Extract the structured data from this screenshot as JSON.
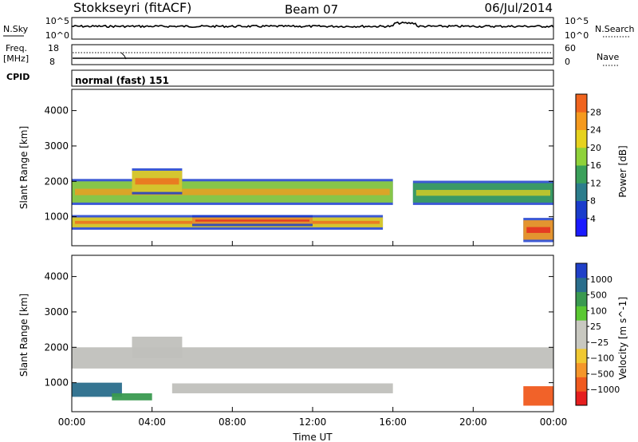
{
  "header": {
    "station": "Stokkseyri (fitACF)",
    "beam": "Beam 07",
    "date": "06/Jul/2014"
  },
  "sky_panel": {
    "left_label": "N.Sky",
    "right_label": "N.Search",
    "left_ticks": [
      "10^5",
      "10^0"
    ],
    "right_ticks": [
      "10^5",
      "10^0"
    ]
  },
  "freq_panel": {
    "left_label_1": "Freq.",
    "left_label_2": "[MHz]",
    "right_label": "Nave",
    "left_ticks": [
      "18",
      "8"
    ],
    "right_ticks": [
      "60",
      "0"
    ]
  },
  "cpid": {
    "label": "CPID",
    "value": "normal (fast) 151"
  },
  "colors": {
    "power_scale": [
      "#1a1aff",
      "#1a3ccc",
      "#2c7d8c",
      "#3aa05a",
      "#8fd23a",
      "#e6d21e",
      "#f59a1e",
      "#f0641e",
      "#e61e1e"
    ],
    "velocity_scale": [
      "#2040c8",
      "#2a6e8c",
      "#3a9a50",
      "#5ac832",
      "#c8c8c0",
      "#c8c8c0",
      "#f0c832",
      "#f5962a",
      "#f05a1e",
      "#e61e1e"
    ],
    "ground_scatter": "#c0c0bc"
  },
  "chart_data": [
    {
      "type": "heatmap",
      "title": "",
      "xlabel": "",
      "ylabel": "Slant Range [km]",
      "x_range": [
        "00:00",
        "24:00"
      ],
      "ylim": [
        180,
        4600
      ],
      "y_ticks": [
        "1000",
        "2000",
        "3000",
        "4000"
      ],
      "colorbar": {
        "label": "Power [dB]",
        "ticks": [
          "4",
          "8",
          "12",
          "16",
          "20",
          "24",
          "28"
        ],
        "range": [
          0,
          32
        ]
      },
      "bands": [
        {
          "start_h": 0.0,
          "end_h": 16.0,
          "range_low_km": 1400,
          "range_high_km": 2000,
          "level_db": 18
        },
        {
          "start_h": 3.0,
          "end_h": 5.5,
          "range_low_km": 1700,
          "range_high_km": 2300,
          "level_db": 20
        },
        {
          "start_h": 17.0,
          "end_h": 24.0,
          "range_low_km": 1400,
          "range_high_km": 1950,
          "level_db": 14
        },
        {
          "start_h": 0.0,
          "end_h": 15.5,
          "range_low_km": 700,
          "range_high_km": 980,
          "level_db": 22
        },
        {
          "start_h": 6.0,
          "end_h": 12.0,
          "range_low_km": 800,
          "range_high_km": 980,
          "level_db": 26
        },
        {
          "start_h": 22.5,
          "end_h": 24.0,
          "range_low_km": 350,
          "range_high_km": 900,
          "level_db": 24
        }
      ]
    },
    {
      "type": "heatmap",
      "title": "",
      "xlabel": "Time UT",
      "ylabel": "Slant Range [km]",
      "x_range": [
        "00:00",
        "24:00"
      ],
      "x_ticks": [
        "00:00",
        "04:00",
        "08:00",
        "12:00",
        "16:00",
        "20:00",
        "00:00"
      ],
      "ylim": [
        180,
        4600
      ],
      "y_ticks": [
        "1000",
        "2000",
        "3000",
        "4000"
      ],
      "colorbar": {
        "label": "Velocity [m s^-1]",
        "ticks": [
          "1000",
          "500",
          "100",
          "25",
          "−25",
          "−100",
          "−500",
          "−1000"
        ]
      },
      "bands": [
        {
          "start_h": 0.0,
          "end_h": 24.0,
          "range_low_km": 1400,
          "range_high_km": 2000,
          "velocity": 0
        },
        {
          "start_h": 3.0,
          "end_h": 5.5,
          "range_low_km": 1700,
          "range_high_km": 2300,
          "velocity": 0
        },
        {
          "start_h": 0.0,
          "end_h": 2.5,
          "range_low_km": 600,
          "range_high_km": 1000,
          "velocity": 200
        },
        {
          "start_h": 2.0,
          "end_h": 4.0,
          "range_low_km": 500,
          "range_high_km": 700,
          "velocity": 100
        },
        {
          "start_h": 5.0,
          "end_h": 16.0,
          "range_low_km": 700,
          "range_high_km": 980,
          "velocity": 0
        },
        {
          "start_h": 22.5,
          "end_h": 24.0,
          "range_low_km": 350,
          "range_high_km": 900,
          "velocity": -300
        }
      ]
    }
  ]
}
